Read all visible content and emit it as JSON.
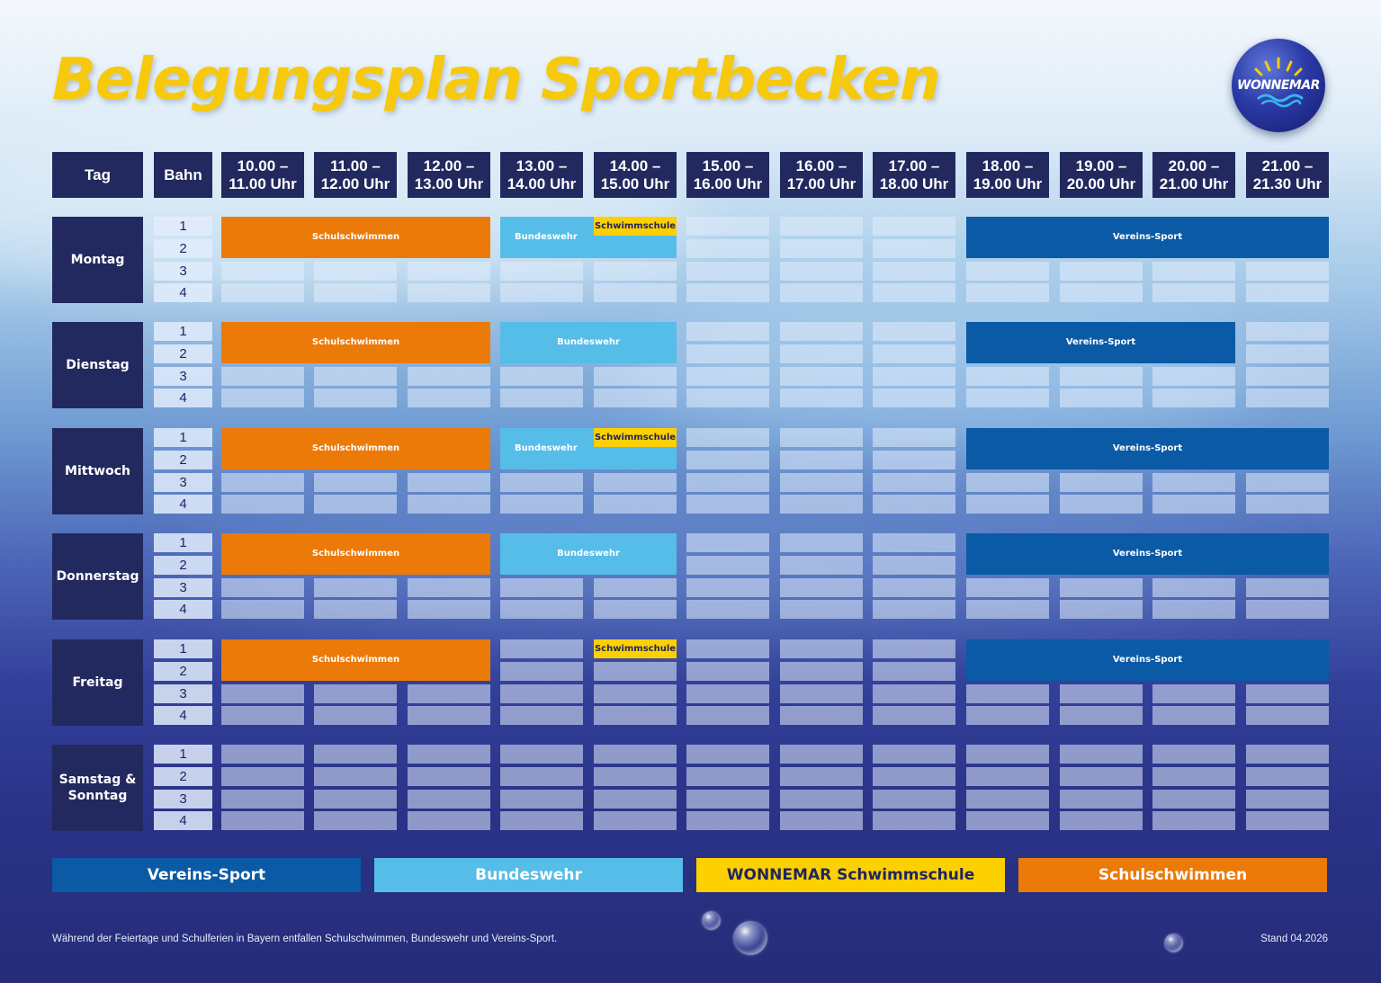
{
  "title": "Belegungsplan Sportbecken",
  "logo": {
    "text": "WONNEMAR",
    "icon": "sun-wave-logo"
  },
  "header": {
    "day": "Tag",
    "lane": "Bahn",
    "times": [
      "10.00 –\n11.00 Uhr",
      "11.00 –\n12.00 Uhr",
      "12.00 –\n13.00 Uhr",
      "13.00 –\n14.00 Uhr",
      "14.00 –\n15.00 Uhr",
      "15.00 –\n16.00 Uhr",
      "16.00 –\n17.00 Uhr",
      "17.00 –\n18.00 Uhr",
      "18.00 –\n19.00 Uhr",
      "19.00 –\n20.00 Uhr",
      "20.00 –\n21.00 Uhr",
      "21.00 –\n21.30 Uhr"
    ]
  },
  "lanes": [
    "1",
    "2",
    "3",
    "4"
  ],
  "days": [
    {
      "name": "Montag",
      "blocks": [
        {
          "type": "schul",
          "label": "Schulschwimmen",
          "start": 0,
          "span": 3,
          "lanes": 2
        },
        {
          "type": "bw",
          "label": "Bundeswehr",
          "start": 3,
          "span": 2,
          "lanes": 2,
          "align": "left"
        },
        {
          "type": "schwimm",
          "label": "Schwimmschule",
          "start": 4,
          "span": 1,
          "lanes": 1
        },
        {
          "type": "verein",
          "label": "Vereins-Sport",
          "start": 8,
          "span": 4,
          "lanes": 2
        }
      ]
    },
    {
      "name": "Dienstag",
      "blocks": [
        {
          "type": "schul",
          "label": "Schulschwimmen",
          "start": 0,
          "span": 3,
          "lanes": 2
        },
        {
          "type": "bw",
          "label": "Bundeswehr",
          "start": 3,
          "span": 2,
          "lanes": 2
        },
        {
          "type": "verein",
          "label": "Vereins-Sport",
          "start": 8,
          "span": 3,
          "lanes": 2
        }
      ]
    },
    {
      "name": "Mittwoch",
      "blocks": [
        {
          "type": "schul",
          "label": "Schulschwimmen",
          "start": 0,
          "span": 3,
          "lanes": 2
        },
        {
          "type": "bw",
          "label": "Bundeswehr",
          "start": 3,
          "span": 2,
          "lanes": 2,
          "align": "left"
        },
        {
          "type": "schwimm",
          "label": "Schwimmschule",
          "start": 4,
          "span": 1,
          "lanes": 1
        },
        {
          "type": "verein",
          "label": "Vereins-Sport",
          "start": 8,
          "span": 4,
          "lanes": 2
        }
      ]
    },
    {
      "name": "Donnerstag",
      "blocks": [
        {
          "type": "schul",
          "label": "Schulschwimmen",
          "start": 0,
          "span": 3,
          "lanes": 2
        },
        {
          "type": "bw",
          "label": "Bundeswehr",
          "start": 3,
          "span": 2,
          "lanes": 2
        },
        {
          "type": "verein",
          "label": "Vereins-Sport",
          "start": 8,
          "span": 4,
          "lanes": 2
        }
      ]
    },
    {
      "name": "Freitag",
      "blocks": [
        {
          "type": "schul",
          "label": "Schulschwimmen",
          "start": 0,
          "span": 3,
          "lanes": 2
        },
        {
          "type": "schwimm",
          "label": "Schwimmschule",
          "start": 4,
          "span": 1,
          "lanes": 1
        },
        {
          "type": "verein",
          "label": "Vereins-Sport",
          "start": 8,
          "span": 4,
          "lanes": 2
        }
      ]
    },
    {
      "name": "Samstag &\nSonntag",
      "blocks": []
    }
  ],
  "legend": [
    {
      "type": "verein",
      "label": "Vereins-Sport"
    },
    {
      "type": "bw",
      "label": "Bundeswehr"
    },
    {
      "type": "schwimm",
      "label": "WONNEMAR Schwimmschule"
    },
    {
      "type": "schul",
      "label": "Schulschwimmen"
    }
  ],
  "colors": {
    "verein": "#0a5aa6",
    "bw": "#56bde9",
    "schwimm": "#fdd000",
    "schul": "#ec7a08",
    "header_bg": "#22295f",
    "title": "#f7c90d"
  },
  "footer": {
    "note": "Während der Feiertage und Schulferien in Bayern entfallen Schulschwimmen, Bundeswehr und Vereins-Sport.",
    "stand": "Stand 04.2026"
  }
}
